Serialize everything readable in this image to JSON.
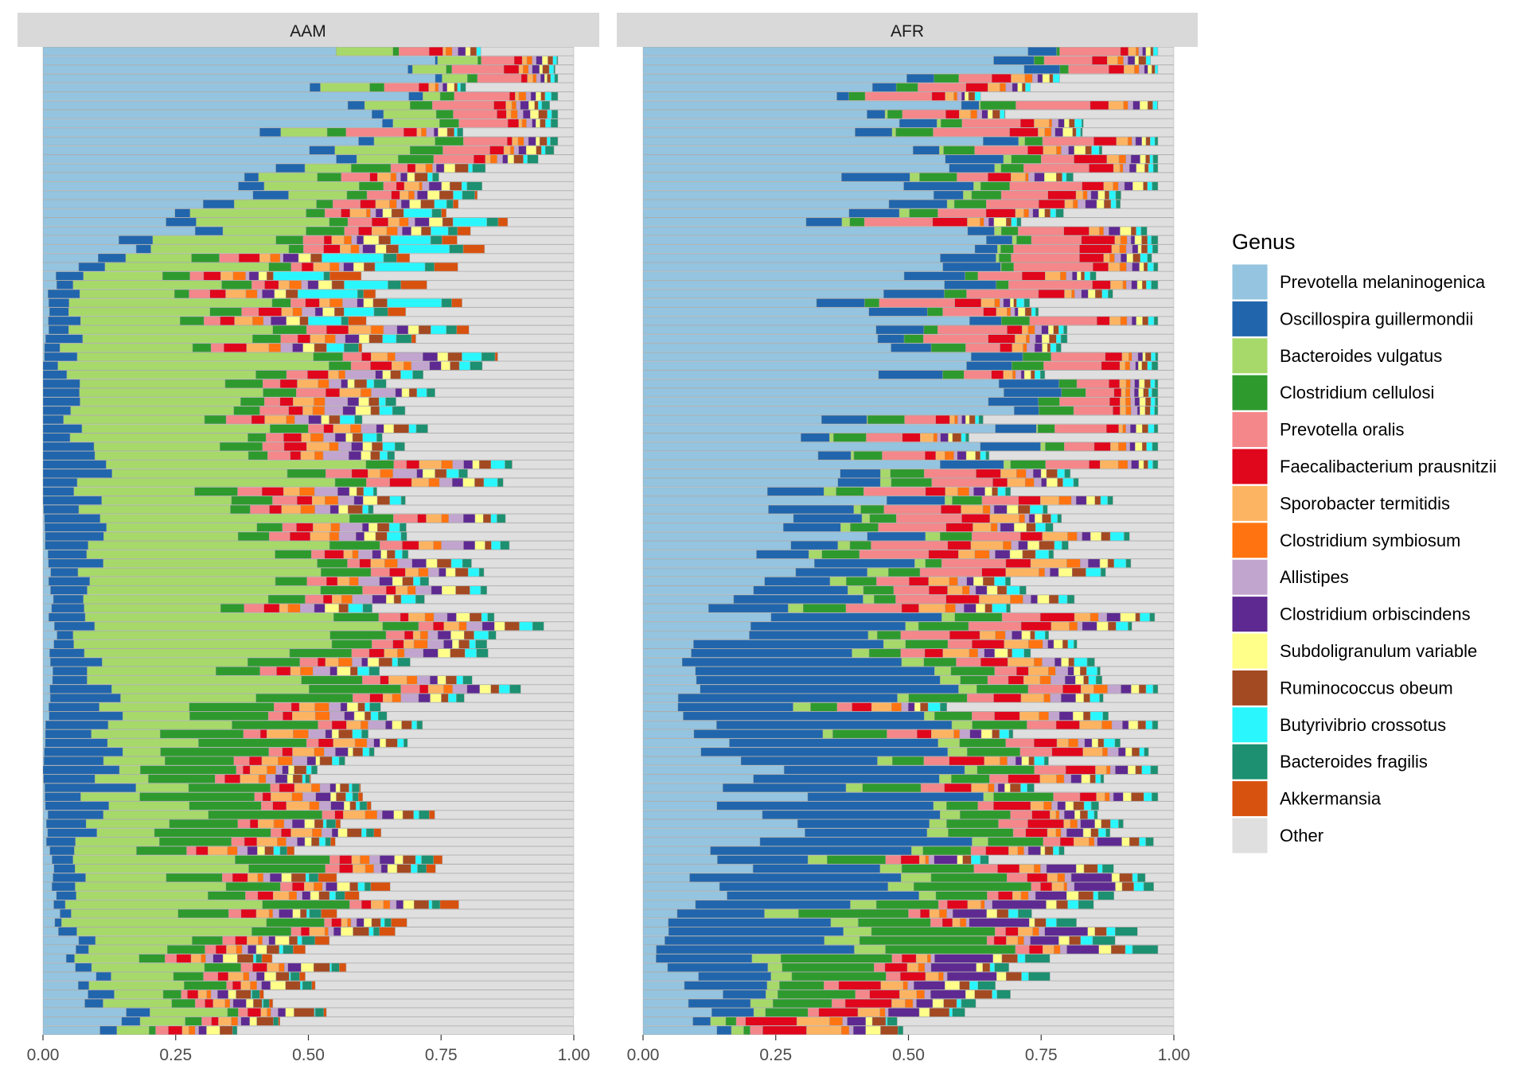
{
  "chart_data": [
    {
      "type": "bar",
      "orientation": "horizontal",
      "stacked": true,
      "panel": "AAM",
      "xlim": [
        0,
        1
      ],
      "x_ticks": [
        "0.00",
        "0.25",
        "0.50",
        "0.75",
        "1.00"
      ],
      "n_samples": 110,
      "category_order": [
        "Prevotella melaninogenica",
        "Oscillospira guillermondii",
        "Bacteroides vulgatus",
        "Clostridium cellulosi",
        "Prevotella oralis",
        "Faecalibacterium prausnitzii",
        "Sporobacter termitidis",
        "Clostridium symbiosum",
        "Allistipes",
        "Clostridium orbiscindens",
        "Subdoligranulum variable",
        "Ruminococcus obeum",
        "Butyrivibrio crossotus",
        "Bacteroides fragilis",
        "Akkermansia",
        "Other"
      ],
      "representative_samples": [
        {
          "row": 1,
          "values": [
            0.14,
            0.04,
            0.07,
            0.02,
            0.02,
            0.02,
            0.02,
            0.01,
            0.01,
            0.02,
            0.02,
            0.03,
            0.0,
            0.01,
            0.0,
            0.57
          ]
        },
        {
          "row": 15,
          "values": [
            0.02,
            0.02,
            0.3,
            0.12,
            0.02,
            0.02,
            0.02,
            0.01,
            0.01,
            0.02,
            0.02,
            0.02,
            0.01,
            0.02,
            0.03,
            0.34
          ]
        },
        {
          "row": 30,
          "values": [
            0.0,
            0.14,
            0.06,
            0.18,
            0.02,
            0.02,
            0.04,
            0.02,
            0.02,
            0.02,
            0.01,
            0.02,
            0.01,
            0.01,
            0.0,
            0.43
          ]
        },
        {
          "row": 45,
          "values": [
            0.02,
            0.05,
            0.4,
            0.08,
            0.03,
            0.02,
            0.02,
            0.02,
            0.03,
            0.02,
            0.02,
            0.02,
            0.02,
            0.02,
            0.0,
            0.23
          ]
        },
        {
          "row": 60,
          "values": [
            0.0,
            0.1,
            0.35,
            0.06,
            0.04,
            0.03,
            0.03,
            0.02,
            0.03,
            0.02,
            0.02,
            0.02,
            0.02,
            0.01,
            0.0,
            0.25
          ]
        },
        {
          "row": 75,
          "values": [
            0.0,
            0.05,
            0.4,
            0.05,
            0.04,
            0.03,
            0.03,
            0.02,
            0.04,
            0.02,
            0.02,
            0.02,
            0.02,
            0.02,
            0.0,
            0.24
          ]
        },
        {
          "row": 85,
          "values": [
            0.02,
            0.05,
            0.22,
            0.04,
            0.03,
            0.03,
            0.03,
            0.02,
            0.01,
            0.02,
            0.02,
            0.02,
            0.1,
            0.02,
            0.05,
            0.24
          ]
        },
        {
          "row": 95,
          "values": [
            0.4,
            0.05,
            0.15,
            0.06,
            0.04,
            0.02,
            0.02,
            0.01,
            0.01,
            0.02,
            0.02,
            0.02,
            0.01,
            0.02,
            0.0,
            0.16
          ]
        },
        {
          "row": 105,
          "values": [
            0.62,
            0.02,
            0.06,
            0.03,
            0.1,
            0.02,
            0.01,
            0.01,
            0.01,
            0.01,
            0.01,
            0.01,
            0.01,
            0.01,
            0.0,
            0.07
          ]
        },
        {
          "row": 110,
          "values": [
            0.66,
            0.0,
            0.09,
            0.01,
            0.08,
            0.02,
            0.01,
            0.01,
            0.01,
            0.01,
            0.01,
            0.01,
            0.01,
            0.0,
            0.0,
            0.07
          ]
        }
      ]
    },
    {
      "type": "bar",
      "orientation": "horizontal",
      "stacked": true,
      "panel": "AFR",
      "xlim": [
        0,
        1
      ],
      "x_ticks": [
        "0.00",
        "0.25",
        "0.50",
        "0.75",
        "1.00"
      ],
      "n_samples": 110,
      "category_order": [
        "Prevotella melaninogenica",
        "Oscillospira guillermondii",
        "Bacteroides vulgatus",
        "Clostridium cellulosi",
        "Prevotella oralis",
        "Faecalibacterium prausnitzii",
        "Sporobacter termitidis",
        "Clostridium symbiosum",
        "Allistipes",
        "Clostridium orbiscindens",
        "Subdoligranulum variable",
        "Ruminococcus obeum",
        "Butyrivibrio crossotus",
        "Bacteroides fragilis",
        "Akkermansia",
        "Other"
      ],
      "representative_samples": [
        {
          "row": 1,
          "values": [
            0.18,
            0.02,
            0.02,
            0.01,
            0.02,
            0.1,
            0.05,
            0.02,
            0.01,
            0.03,
            0.02,
            0.03,
            0.0,
            0.01,
            0.0,
            0.48
          ]
        },
        {
          "row": 10,
          "values": [
            0.02,
            0.28,
            0.05,
            0.22,
            0.02,
            0.02,
            0.02,
            0.01,
            0.01,
            0.1,
            0.02,
            0.02,
            0.02,
            0.04,
            0.0,
            0.15
          ]
        },
        {
          "row": 25,
          "values": [
            0.25,
            0.3,
            0.03,
            0.08,
            0.04,
            0.05,
            0.02,
            0.01,
            0.01,
            0.02,
            0.01,
            0.02,
            0.01,
            0.01,
            0.0,
            0.14
          ]
        },
        {
          "row": 40,
          "values": [
            0.08,
            0.4,
            0.03,
            0.08,
            0.05,
            0.04,
            0.04,
            0.02,
            0.02,
            0.02,
            0.02,
            0.01,
            0.02,
            0.01,
            0.0,
            0.16
          ]
        },
        {
          "row": 55,
          "values": [
            0.28,
            0.12,
            0.03,
            0.05,
            0.1,
            0.05,
            0.05,
            0.02,
            0.01,
            0.02,
            0.02,
            0.02,
            0.02,
            0.01,
            0.0,
            0.2
          ]
        },
        {
          "row": 70,
          "values": [
            0.6,
            0.09,
            0.0,
            0.06,
            0.08,
            0.02,
            0.01,
            0.01,
            0.01,
            0.01,
            0.01,
            0.01,
            0.01,
            0.01,
            0.0,
            0.07
          ]
        },
        {
          "row": 85,
          "values": [
            0.56,
            0.08,
            0.0,
            0.03,
            0.12,
            0.05,
            0.02,
            0.01,
            0.01,
            0.01,
            0.01,
            0.01,
            0.01,
            0.01,
            0.0,
            0.07
          ]
        },
        {
          "row": 95,
          "values": [
            0.45,
            0.1,
            0.02,
            0.05,
            0.1,
            0.05,
            0.02,
            0.01,
            0.01,
            0.02,
            0.02,
            0.01,
            0.01,
            0.01,
            0.0,
            0.12
          ]
        },
        {
          "row": 105,
          "values": [
            0.62,
            0.04,
            0.0,
            0.05,
            0.1,
            0.04,
            0.02,
            0.01,
            0.01,
            0.01,
            0.01,
            0.01,
            0.01,
            0.0,
            0.0,
            0.07
          ]
        },
        {
          "row": 110,
          "values": [
            0.65,
            0.06,
            0.0,
            0.01,
            0.1,
            0.03,
            0.02,
            0.01,
            0.01,
            0.01,
            0.01,
            0.01,
            0.01,
            0.0,
            0.0,
            0.07
          ]
        }
      ]
    }
  ],
  "panels": [
    {
      "label": "AAM"
    },
    {
      "label": "AFR"
    }
  ],
  "legend": {
    "title": "Genus",
    "items": [
      {
        "label": "Prevotella melaninogenica",
        "color": "#94c4df"
      },
      {
        "label": "Oscillospira guillermondii",
        "color": "#2166ac"
      },
      {
        "label": "Bacteroides vulgatus",
        "color": "#a6d96a"
      },
      {
        "label": "Clostridium cellulosi",
        "color": "#2e9a2e"
      },
      {
        "label": "Prevotella oralis",
        "color": "#f4878a"
      },
      {
        "label": "Faecalibacterium prausnitzii",
        "color": "#e0061c"
      },
      {
        "label": "Sporobacter termitidis",
        "color": "#fdb462"
      },
      {
        "label": "Clostridium symbiosum",
        "color": "#ff7410"
      },
      {
        "label": "Allistipes",
        "color": "#c2a5cf"
      },
      {
        "label": "Clostridium orbiscindens",
        "color": "#5e2a91"
      },
      {
        "label": "Subdoligranulum variable",
        "color": "#ffff8a"
      },
      {
        "label": "Ruminococcus obeum",
        "color": "#a34a22"
      },
      {
        "label": "Butyrivibrio crossotus",
        "color": "#2af7fd"
      },
      {
        "label": "Bacteroides fragilis",
        "color": "#1c9070"
      },
      {
        "label": "Akkermansia",
        "color": "#d8520f"
      },
      {
        "label": "Other",
        "color": "#dfdfdf"
      }
    ]
  }
}
